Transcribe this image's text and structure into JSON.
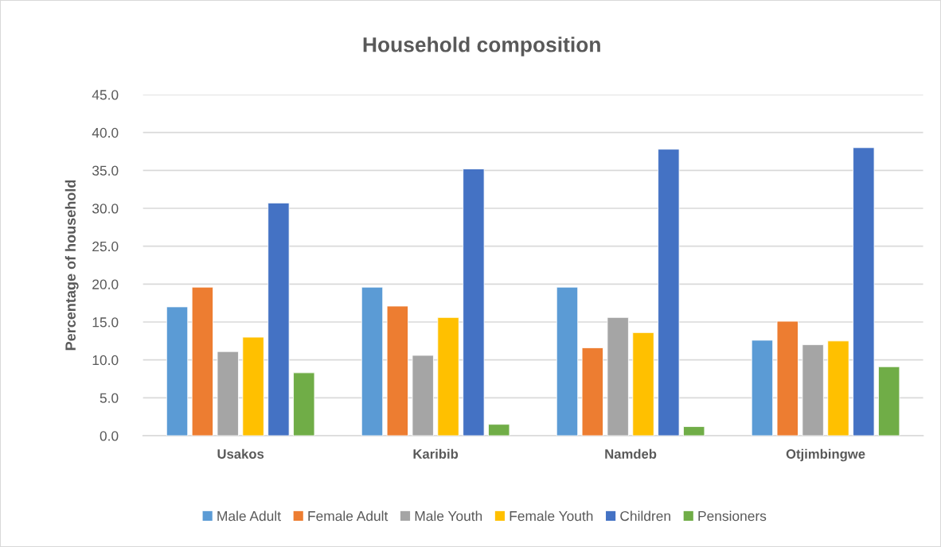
{
  "chart_data": {
    "type": "bar",
    "title": "Household composition",
    "ylabel": "Percentage of household",
    "categories": [
      "Usakos",
      "Karibib",
      "Namdeb",
      "Otjimbingwe"
    ],
    "series": [
      {
        "name": "Male Adult",
        "color": "#5b9bd5",
        "values": [
          17.0,
          19.6,
          19.6,
          12.6
        ]
      },
      {
        "name": "Female Adult",
        "color": "#ed7d31",
        "values": [
          19.6,
          17.1,
          11.6,
          15.1
        ]
      },
      {
        "name": "Male Youth",
        "color": "#a5a5a5",
        "values": [
          11.1,
          10.6,
          15.6,
          12.0
        ]
      },
      {
        "name": "Female Youth",
        "color": "#ffc000",
        "values": [
          13.0,
          15.6,
          13.6,
          12.5
        ]
      },
      {
        "name": "Children",
        "color": "#4472c4",
        "values": [
          30.7,
          35.2,
          37.8,
          38.0
        ]
      },
      {
        "name": "Pensioners",
        "color": "#70ad47",
        "values": [
          8.3,
          1.5,
          1.2,
          9.1
        ]
      }
    ],
    "ylim": [
      0,
      45
    ],
    "yticks": [
      {
        "value": 0,
        "label": "0.0"
      },
      {
        "value": 5,
        "label": "5.0"
      },
      {
        "value": 10,
        "label": "10.0"
      },
      {
        "value": 15,
        "label": "15.0"
      },
      {
        "value": 20,
        "label": "20.0"
      },
      {
        "value": 25,
        "label": "25.0"
      },
      {
        "value": 30,
        "label": "30.0"
      },
      {
        "value": 35,
        "label": "35.0"
      },
      {
        "value": 40,
        "label": "40.0"
      },
      {
        "value": 45,
        "label": "45.0"
      }
    ],
    "grid": "y",
    "legend": "bottom"
  }
}
